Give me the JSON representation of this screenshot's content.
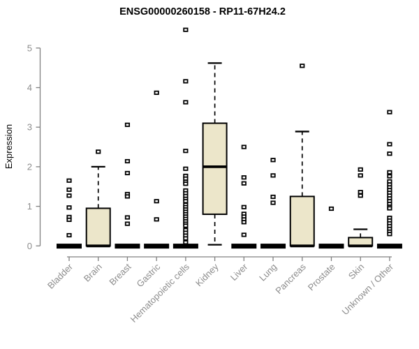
{
  "chart_data": {
    "type": "boxplot",
    "title": "ENSG00000260158 - RP11-67H24.2",
    "xlabel": "",
    "ylabel": "Expression",
    "ylim": [
      0,
      5.6
    ],
    "yticks": [
      0,
      1,
      2,
      3,
      4,
      5
    ],
    "grid": false,
    "legend": "none",
    "x_label_rotation": 45,
    "categories": [
      "Bladder",
      "Brain",
      "Breast",
      "Gastric",
      "Hematopoietic cells",
      "Kidney",
      "Liver",
      "Lung",
      "Pancreas",
      "Prostate",
      "Skin",
      "Unknown / Other"
    ],
    "series": [
      {
        "name": "Bladder",
        "q1": 0,
        "median": 0,
        "q3": 0,
        "whisker_low": 0,
        "whisker_high": 0,
        "outliers": [
          1.65,
          1.42,
          1.27,
          0.97,
          0.73,
          0.66,
          0.27
        ]
      },
      {
        "name": "Brain",
        "q1": 0,
        "median": 0,
        "q3": 0.95,
        "whisker_low": 0,
        "whisker_high": 2.0,
        "outliers": [
          2.38
        ]
      },
      {
        "name": "Breast",
        "q1": 0,
        "median": 0,
        "q3": 0,
        "whisker_low": 0,
        "whisker_high": 0,
        "outliers": [
          3.06,
          2.14,
          1.84,
          1.31,
          1.25,
          0.72,
          0.56
        ]
      },
      {
        "name": "Gastric",
        "q1": 0,
        "median": 0,
        "q3": 0,
        "whisker_low": 0,
        "whisker_high": 0,
        "outliers": [
          3.87,
          1.13,
          0.67
        ]
      },
      {
        "name": "Hematopoietic cells",
        "q1": 0,
        "median": 0,
        "q3": 0,
        "whisker_low": 0,
        "whisker_high": 0,
        "outliers": [
          5.46,
          4.16,
          3.63,
          2.4,
          1.95,
          1.77,
          1.7,
          1.62,
          1.57,
          1.4,
          1.33,
          1.26,
          1.19,
          1.13,
          1.04,
          0.98,
          0.92,
          0.86,
          0.8,
          0.74,
          0.68,
          0.62,
          0.56,
          0.51,
          0.4,
          0.33,
          0.26,
          0.19,
          0.09
        ]
      },
      {
        "name": "Kidney",
        "q1": 0.8,
        "median": 2.0,
        "q3": 3.1,
        "whisker_low": 0.03,
        "whisker_high": 4.62,
        "outliers": []
      },
      {
        "name": "Liver",
        "q1": 0,
        "median": 0,
        "q3": 0,
        "whisker_low": 0,
        "whisker_high": 0,
        "outliers": [
          2.5,
          1.73,
          1.58,
          0.98,
          0.81,
          0.74,
          0.67,
          0.6,
          0.28
        ]
      },
      {
        "name": "Lung",
        "q1": 0,
        "median": 0,
        "q3": 0,
        "whisker_low": 0,
        "whisker_high": 0,
        "outliers": [
          2.17,
          1.78,
          1.24,
          1.09
        ]
      },
      {
        "name": "Pancreas",
        "q1": 0,
        "median": 0,
        "q3": 1.25,
        "whisker_low": 0,
        "whisker_high": 2.89,
        "outliers": [
          4.55
        ]
      },
      {
        "name": "Prostate",
        "q1": 0,
        "median": 0,
        "q3": 0,
        "whisker_low": 0,
        "whisker_high": 0,
        "outliers": [
          0.94
        ]
      },
      {
        "name": "Skin",
        "q1": 0,
        "median": 0,
        "q3": 0.21,
        "whisker_low": 0,
        "whisker_high": 0.42,
        "outliers": [
          1.93,
          1.78,
          1.36,
          1.27
        ]
      },
      {
        "name": "Unknown / Other",
        "q1": 0,
        "median": 0,
        "q3": 0,
        "whisker_low": 0,
        "whisker_high": 0,
        "outliers": [
          3.38,
          2.57,
          2.33,
          1.86,
          1.76,
          1.63,
          1.55,
          1.48,
          1.41,
          1.34,
          1.27,
          1.2,
          1.13,
          1.06,
          0.99,
          0.95,
          0.71,
          0.64,
          0.57,
          0.5,
          0.43,
          0.36,
          0.3
        ]
      }
    ],
    "colors": {
      "box_fill": "#ece6ca",
      "box_stroke": "#000000",
      "median": "#000000",
      "whisker": "#000000",
      "outlier_stroke": "#000000",
      "outlier_fill": "#ffffff",
      "axis": "#808080",
      "tick_label": "#8c8c8c",
      "title": "#000000",
      "background": "#ffffff"
    }
  }
}
